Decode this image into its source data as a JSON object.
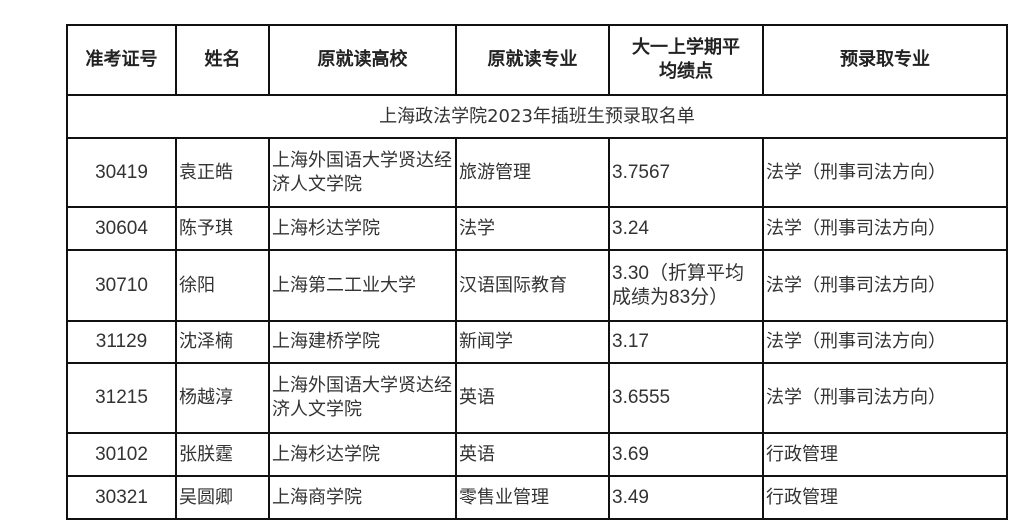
{
  "title": "上海政法学院2023年插班生预录取名单",
  "headers": [
    "准考证号",
    "姓名",
    "原就读高校",
    "原就读专业",
    "大一上学期平均绩点",
    "预录取专业"
  ],
  "rows": [
    {
      "id": "30419",
      "name": "袁正皓",
      "school": "上海外国语大学贤达经济人文学院",
      "major": "旅游管理",
      "gpa": "3.7567",
      "target": "法学（刑事司法方向）"
    },
    {
      "id": "30604",
      "name": "陈予琪",
      "school": "上海杉达学院",
      "major": "法学",
      "gpa": "3.24",
      "target": "法学（刑事司法方向）"
    },
    {
      "id": "30710",
      "name": "徐阳",
      "school": "上海第二工业大学",
      "major": "汉语国际教育",
      "gpa": "3.30（折算平均成绩为83分）",
      "target": "法学（刑事司法方向）"
    },
    {
      "id": "31129",
      "name": "沈泽楠",
      "school": "上海建桥学院",
      "major": "新闻学",
      "gpa": "3.17",
      "target": "法学（刑事司法方向）"
    },
    {
      "id": "31215",
      "name": "杨越淳",
      "school": "上海外国语大学贤达经济人文学院",
      "major": "英语",
      "gpa": "3.6555",
      "target": "法学（刑事司法方向）"
    },
    {
      "id": "30102",
      "name": "张朕霆",
      "school": "上海杉达学院",
      "major": "英语",
      "gpa": "3.69",
      "target": "行政管理"
    },
    {
      "id": "30321",
      "name": "吴圆卿",
      "school": "上海商学院",
      "major": "零售业管理",
      "gpa": "3.49",
      "target": "行政管理"
    }
  ]
}
